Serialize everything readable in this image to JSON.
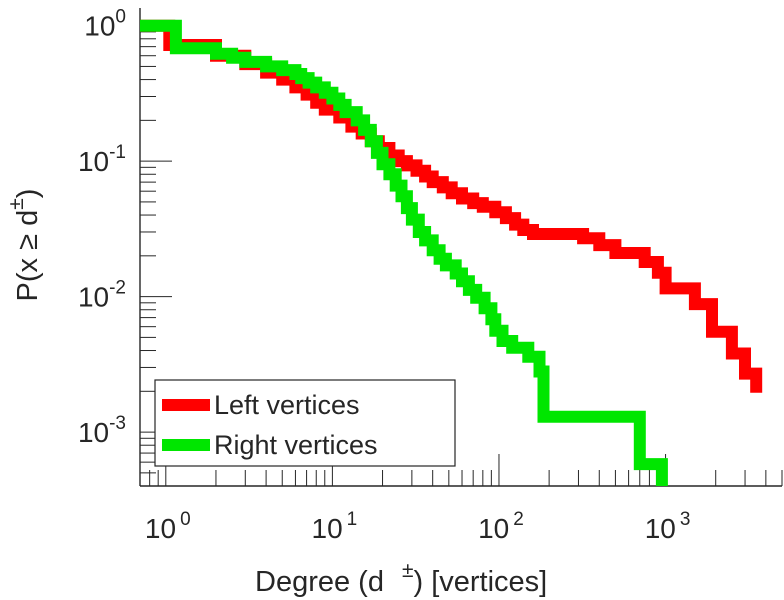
{
  "chart_data": {
    "type": "line",
    "title": "",
    "xlabel": {
      "prefix": "Degree (d",
      "superscript": "±",
      "suffix": ") [vertices]"
    },
    "ylabel": {
      "prefix": "P(x ≥ d",
      "superscript": "±",
      "suffix": ")"
    },
    "x_scale": "log",
    "y_scale": "log",
    "xlim": [
      0.7,
      5000
    ],
    "ylim": [
      0.0004,
      1.35
    ],
    "x_ticks": [
      {
        "base": "10",
        "exp": "0",
        "value": 1
      },
      {
        "base": "10",
        "exp": "1",
        "value": 10
      },
      {
        "base": "10",
        "exp": "2",
        "value": 100
      },
      {
        "base": "10",
        "exp": "3",
        "value": 1000
      }
    ],
    "y_ticks": [
      {
        "base": "10",
        "exp": "0",
        "value": 1
      },
      {
        "base": "10",
        "exp": "-1",
        "value": 0.1
      },
      {
        "base": "10",
        "exp": "-2",
        "value": 0.01
      },
      {
        "base": "10",
        "exp": "-3",
        "value": 0.001
      }
    ],
    "grid": false,
    "legend_position": "bottom-left",
    "series": [
      {
        "name": "Left vertices",
        "color": "#ff0000",
        "points": [
          [
            0.7,
            1.0
          ],
          [
            1.05,
            1.0
          ],
          [
            1.05,
            0.72
          ],
          [
            2.0,
            0.72
          ],
          [
            2.0,
            0.6
          ],
          [
            3.0,
            0.6
          ],
          [
            3.0,
            0.52
          ],
          [
            4.0,
            0.52
          ],
          [
            4.0,
            0.45
          ],
          [
            5.0,
            0.45
          ],
          [
            5.0,
            0.4
          ],
          [
            6.0,
            0.4
          ],
          [
            6.0,
            0.35
          ],
          [
            7.0,
            0.35
          ],
          [
            7.0,
            0.31
          ],
          [
            8.0,
            0.31
          ],
          [
            8.0,
            0.27
          ],
          [
            9.0,
            0.27
          ],
          [
            9.0,
            0.24
          ],
          [
            11.0,
            0.24
          ],
          [
            11.0,
            0.21
          ],
          [
            13.0,
            0.21
          ],
          [
            13.0,
            0.18
          ],
          [
            15.0,
            0.18
          ],
          [
            15.0,
            0.16
          ],
          [
            17.0,
            0.16
          ],
          [
            17.0,
            0.14
          ],
          [
            19.0,
            0.14
          ],
          [
            19.0,
            0.125
          ],
          [
            22.0,
            0.125
          ],
          [
            22.0,
            0.11
          ],
          [
            25.0,
            0.11
          ],
          [
            25.0,
            0.1
          ],
          [
            28.0,
            0.1
          ],
          [
            28.0,
            0.093
          ],
          [
            32.0,
            0.093
          ],
          [
            32.0,
            0.085
          ],
          [
            36.0,
            0.085
          ],
          [
            36.0,
            0.077
          ],
          [
            40.0,
            0.077
          ],
          [
            40.0,
            0.07
          ],
          [
            46.0,
            0.07
          ],
          [
            46.0,
            0.064
          ],
          [
            52.0,
            0.064
          ],
          [
            52.0,
            0.058
          ],
          [
            60.0,
            0.058
          ],
          [
            60.0,
            0.053
          ],
          [
            70.0,
            0.053
          ],
          [
            70.0,
            0.049
          ],
          [
            80.0,
            0.049
          ],
          [
            80.0,
            0.046
          ],
          [
            95.0,
            0.046
          ],
          [
            95.0,
            0.042
          ],
          [
            110.0,
            0.042
          ],
          [
            110.0,
            0.038
          ],
          [
            125.0,
            0.038
          ],
          [
            125.0,
            0.034
          ],
          [
            140.0,
            0.034
          ],
          [
            140.0,
            0.031
          ],
          [
            160.0,
            0.031
          ],
          [
            160.0,
            0.029
          ],
          [
            320.0,
            0.029
          ],
          [
            320.0,
            0.027
          ],
          [
            400.0,
            0.027
          ],
          [
            400.0,
            0.024
          ],
          [
            500.0,
            0.024
          ],
          [
            500.0,
            0.021
          ],
          [
            750.0,
            0.021
          ],
          [
            750.0,
            0.018
          ],
          [
            900.0,
            0.018
          ],
          [
            900.0,
            0.015
          ],
          [
            1000.0,
            0.015
          ],
          [
            1000.0,
            0.0115
          ],
          [
            1500.0,
            0.0115
          ],
          [
            1500.0,
            0.0088
          ],
          [
            1900.0,
            0.0088
          ],
          [
            1900.0,
            0.0055
          ],
          [
            2500.0,
            0.0055
          ],
          [
            2500.0,
            0.0038
          ],
          [
            3000.0,
            0.0038
          ],
          [
            3000.0,
            0.0027
          ],
          [
            3500.0,
            0.0027
          ],
          [
            3500.0,
            0.00195
          ]
        ]
      },
      {
        "name": "Right vertices",
        "color": "#00e600",
        "points": [
          [
            0.7,
            1.0
          ],
          [
            1.15,
            1.0
          ],
          [
            1.15,
            0.68
          ],
          [
            2.0,
            0.68
          ],
          [
            2.0,
            0.62
          ],
          [
            2.5,
            0.62
          ],
          [
            2.5,
            0.58
          ],
          [
            3.0,
            0.58
          ],
          [
            3.0,
            0.54
          ],
          [
            4.0,
            0.54
          ],
          [
            4.0,
            0.5
          ],
          [
            5.0,
            0.5
          ],
          [
            5.0,
            0.47
          ],
          [
            6.0,
            0.47
          ],
          [
            6.0,
            0.44
          ],
          [
            6.5,
            0.44
          ],
          [
            6.5,
            0.41
          ],
          [
            7.2,
            0.41
          ],
          [
            7.2,
            0.38
          ],
          [
            8.0,
            0.38
          ],
          [
            8.0,
            0.35
          ],
          [
            9.0,
            0.35
          ],
          [
            9.0,
            0.32
          ],
          [
            10.0,
            0.32
          ],
          [
            10.0,
            0.29
          ],
          [
            11.0,
            0.29
          ],
          [
            11.0,
            0.26
          ],
          [
            12.0,
            0.26
          ],
          [
            12.0,
            0.23
          ],
          [
            14.0,
            0.23
          ],
          [
            14.0,
            0.2
          ],
          [
            15.5,
            0.2
          ],
          [
            15.5,
            0.17
          ],
          [
            17.0,
            0.17
          ],
          [
            17.0,
            0.14
          ],
          [
            18.5,
            0.14
          ],
          [
            18.5,
            0.115
          ],
          [
            20.0,
            0.115
          ],
          [
            20.0,
            0.095
          ],
          [
            22.0,
            0.095
          ],
          [
            22.0,
            0.08
          ],
          [
            24.0,
            0.08
          ],
          [
            24.0,
            0.066
          ],
          [
            26.0,
            0.066
          ],
          [
            26.0,
            0.055
          ],
          [
            28.0,
            0.055
          ],
          [
            28.0,
            0.045
          ],
          [
            30.0,
            0.045
          ],
          [
            30.0,
            0.037
          ],
          [
            33.0,
            0.037
          ],
          [
            33.0,
            0.03
          ],
          [
            36.0,
            0.03
          ],
          [
            36.0,
            0.026
          ],
          [
            40.0,
            0.026
          ],
          [
            40.0,
            0.022
          ],
          [
            44.0,
            0.022
          ],
          [
            44.0,
            0.019
          ],
          [
            48.0,
            0.019
          ],
          [
            48.0,
            0.017
          ],
          [
            55.0,
            0.017
          ],
          [
            55.0,
            0.0148
          ],
          [
            60.0,
            0.0148
          ],
          [
            60.0,
            0.013
          ],
          [
            66.0,
            0.013
          ],
          [
            66.0,
            0.0112
          ],
          [
            73.0,
            0.0112
          ],
          [
            73.0,
            0.0098
          ],
          [
            82.0,
            0.0098
          ],
          [
            82.0,
            0.0082
          ],
          [
            90.0,
            0.0082
          ],
          [
            90.0,
            0.0068
          ],
          [
            95.0,
            0.0068
          ],
          [
            95.0,
            0.0056
          ],
          [
            105.0,
            0.0056
          ],
          [
            105.0,
            0.0047
          ],
          [
            120.0,
            0.0047
          ],
          [
            120.0,
            0.0042
          ],
          [
            150.0,
            0.0042
          ],
          [
            150.0,
            0.0036
          ],
          [
            175.0,
            0.0036
          ],
          [
            175.0,
            0.0028
          ],
          [
            185.0,
            0.0028
          ],
          [
            185.0,
            0.0013
          ],
          [
            700.0,
            0.0013
          ],
          [
            700.0,
            0.00058
          ],
          [
            950.0,
            0.00058
          ],
          [
            950.0,
            0.0004
          ]
        ]
      }
    ]
  }
}
